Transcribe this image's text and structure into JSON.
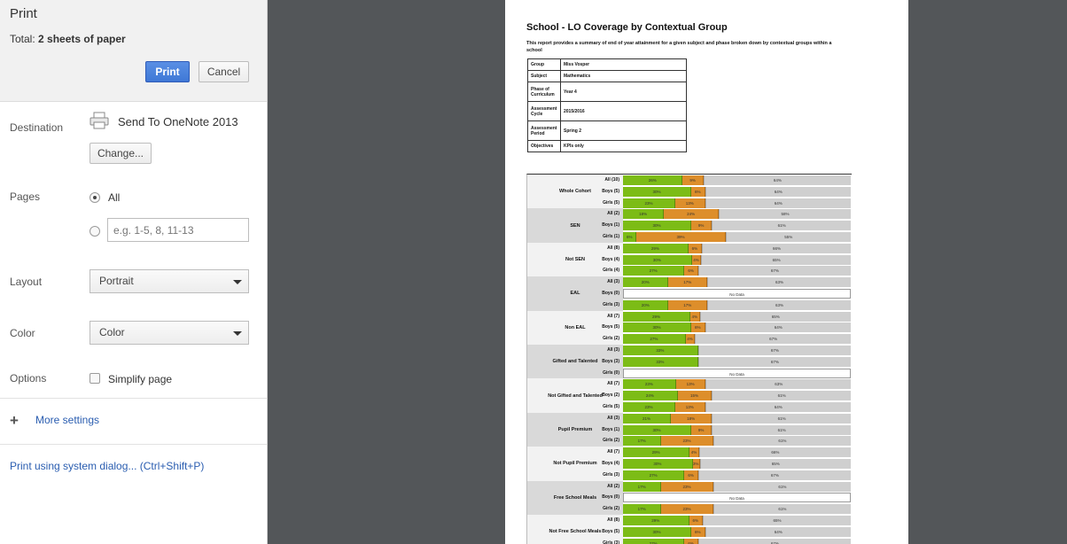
{
  "print_panel": {
    "title": "Print",
    "total_prefix": "Total: ",
    "total_value": "2 sheets of paper",
    "print_label": "Print",
    "cancel_label": "Cancel",
    "destination_label": "Destination",
    "destination_name": "Send To OneNote 2013",
    "printer_icon": "printer-icon",
    "change_label": "Change...",
    "pages_label": "Pages",
    "pages_all_label": "All",
    "pages_placeholder": "e.g. 1-5, 8, 11-13",
    "pages_selected": "All",
    "layout_label": "Layout",
    "layout_value": "Portrait",
    "color_label": "Color",
    "color_value": "Color",
    "options_label": "Options",
    "simplify_label": "Simplify page",
    "simplify_checked": false,
    "more_settings_label": "More settings",
    "system_dialog_label": "Print using system dialog... (Ctrl+Shift+P)"
  },
  "colors": {
    "print_button": "#4a86e8",
    "preview_background": "#535659",
    "attained": "#7cbc16",
    "partial": "#dd8e2b",
    "not_attained": "#cfcfcf"
  },
  "document": {
    "title": "School - LO Coverage by Contextual Group",
    "description": "This report provides a summary of end of year attainment for a given subject and phase broken down by contextual groups within a school",
    "info": [
      {
        "key": "Group",
        "value": "Miss Vosper"
      },
      {
        "key": "Subject",
        "value": "Mathematics"
      },
      {
        "key": "Phase of Curriculum",
        "value": "Year 4"
      },
      {
        "key": "Assessment Cycle",
        "value": "2015/2016"
      },
      {
        "key": "Assessment Period",
        "value": "Spring 2"
      },
      {
        "key": "Objectives",
        "value": "KPIs only"
      }
    ],
    "no_data_label": "No Data"
  },
  "chart_data": {
    "type": "bar",
    "stacked": true,
    "orientation": "horizontal",
    "series_colors": [
      "#7cbc16",
      "#dd8e2b",
      "#cfcfcf"
    ],
    "groups": [
      {
        "name": "Whole Cohort",
        "rows": [
          {
            "label": "All (10)",
            "values": [
              26,
              9,
              64
            ]
          },
          {
            "label": "Boys (5)",
            "values": [
              30,
              6,
              64
            ]
          },
          {
            "label": "Girls (5)",
            "values": [
              23,
              13,
              64
            ]
          }
        ]
      },
      {
        "name": "SEN",
        "rows": [
          {
            "label": "All (2)",
            "values": [
              18,
              24,
              58
            ]
          },
          {
            "label": "Boys (1)",
            "values": [
              30,
              9,
              61
            ]
          },
          {
            "label": "Girls (1)",
            "values": [
              6,
              39,
              55
            ]
          }
        ]
      },
      {
        "name": "Not SEN",
        "rows": [
          {
            "label": "All (8)",
            "values": [
              29,
              6,
              66
            ]
          },
          {
            "label": "Boys (4)",
            "values": [
              30,
              4,
              65
            ]
          },
          {
            "label": "Girls (4)",
            "values": [
              27,
              6,
              67
            ]
          }
        ]
      },
      {
        "name": "EAL",
        "rows": [
          {
            "label": "All (3)",
            "values": [
              20,
              17,
              63
            ]
          },
          {
            "label": "Boys (0)",
            "values": null
          },
          {
            "label": "Girls (3)",
            "values": [
              20,
              17,
              63
            ]
          }
        ]
      },
      {
        "name": "Non EAL",
        "rows": [
          {
            "label": "All (7)",
            "values": [
              29,
              4,
              65
            ]
          },
          {
            "label": "Boys (5)",
            "values": [
              30,
              6,
              64
            ]
          },
          {
            "label": "Girls (2)",
            "values": [
              27,
              4,
              67
            ]
          }
        ]
      },
      {
        "name": "Gifted and Talented",
        "rows": [
          {
            "label": "All (3)",
            "values": [
              33,
              0,
              67
            ]
          },
          {
            "label": "Boys (3)",
            "values": [
              33,
              0,
              67
            ]
          },
          {
            "label": "Girls (0)",
            "values": null
          }
        ]
      },
      {
        "name": "Not Gifted and Talented",
        "rows": [
          {
            "label": "All (7)",
            "values": [
              23,
              13,
              63
            ]
          },
          {
            "label": "Boys (2)",
            "values": [
              24,
              15,
              61
            ]
          },
          {
            "label": "Girls (5)",
            "values": [
              23,
              13,
              64
            ]
          }
        ]
      },
      {
        "name": "Pupil Premium",
        "rows": [
          {
            "label": "All (3)",
            "values": [
              21,
              18,
              61
            ]
          },
          {
            "label": "Boys (1)",
            "values": [
              30,
              9,
              61
            ]
          },
          {
            "label": "Girls (2)",
            "values": [
              17,
              23,
              61
            ]
          }
        ]
      },
      {
        "name": "Not Pupil Premium",
        "rows": [
          {
            "label": "All (7)",
            "values": [
              29,
              4,
              66
            ]
          },
          {
            "label": "Boys (4)",
            "values": [
              30,
              3,
              65
            ]
          },
          {
            "label": "Girls (3)",
            "values": [
              27,
              6,
              67
            ]
          }
        ]
      },
      {
        "name": "Free School Meals",
        "rows": [
          {
            "label": "All (2)",
            "values": [
              17,
              23,
              61
            ]
          },
          {
            "label": "Boys (0)",
            "values": null
          },
          {
            "label": "Girls (2)",
            "values": [
              17,
              23,
              61
            ]
          }
        ]
      },
      {
        "name": "Not Free School Meals",
        "rows": [
          {
            "label": "All (8)",
            "values": [
              29,
              6,
              65
            ]
          },
          {
            "label": "Boys (5)",
            "values": [
              30,
              6,
              64
            ]
          },
          {
            "label": "Girls (3)",
            "values": [
              27,
              6,
              67
            ]
          }
        ]
      }
    ]
  }
}
